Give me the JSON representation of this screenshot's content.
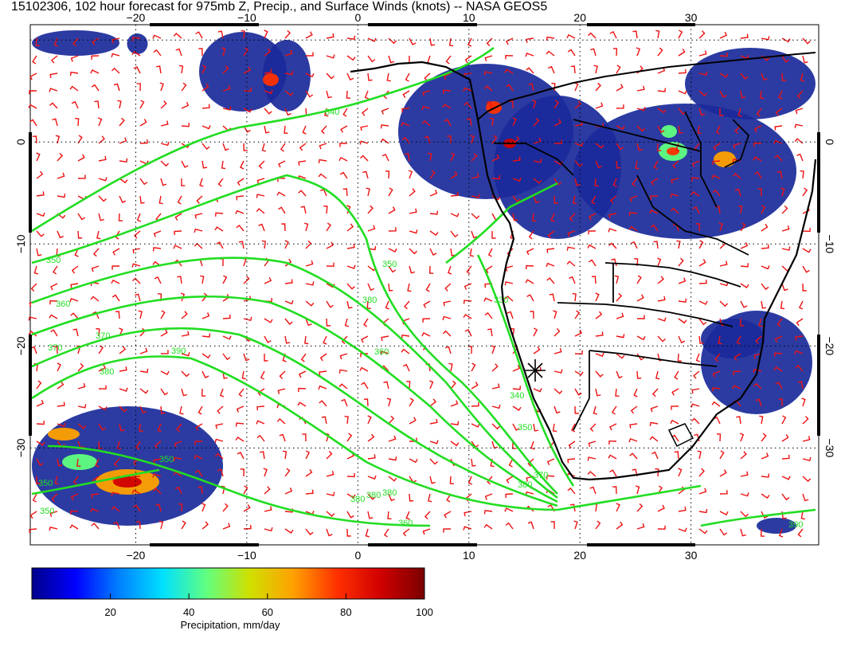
{
  "title": "15102306, 102 hour forecast for 975mb Z, Precip., and Surface Winds (knots) -- NASA GEOS5",
  "axes": {
    "lon_ticks": [
      "−20",
      "−10",
      "0",
      "10",
      "20",
      "30"
    ],
    "lat_ticks": [
      "0",
      "−10",
      "−20",
      "−30"
    ],
    "lon_range": [
      -29.5,
      41.5
    ],
    "lat_range": [
      -39.5,
      11.5
    ],
    "grid": "dotted"
  },
  "contour_labels": [
    "340",
    "350",
    "350",
    "350",
    "360",
    "370",
    "380",
    "380",
    "380",
    "390",
    "370",
    "360",
    "350",
    "330",
    "340",
    "350",
    "370",
    "380",
    "390",
    "380",
    "350",
    "380",
    "360"
  ],
  "colorbar": {
    "ticks": [
      "20",
      "40",
      "60",
      "80",
      "100"
    ],
    "range": [
      0,
      100
    ],
    "label": "Precipitation, mm/day",
    "colors": [
      "#00008b",
      "#0000ff",
      "#0080ff",
      "#00e0ff",
      "#60ff80",
      "#d0e000",
      "#ffa000",
      "#ff3000",
      "#d00000",
      "#7a0000"
    ]
  },
  "marker": {
    "symbol": "asterisk",
    "lon": 14.5,
    "lat": -23.0
  },
  "colors": {
    "contours": "#22dd22",
    "wind_barbs": "#ee1111",
    "coastlines": "#000000",
    "precip_low": "#1a2a9a"
  }
}
